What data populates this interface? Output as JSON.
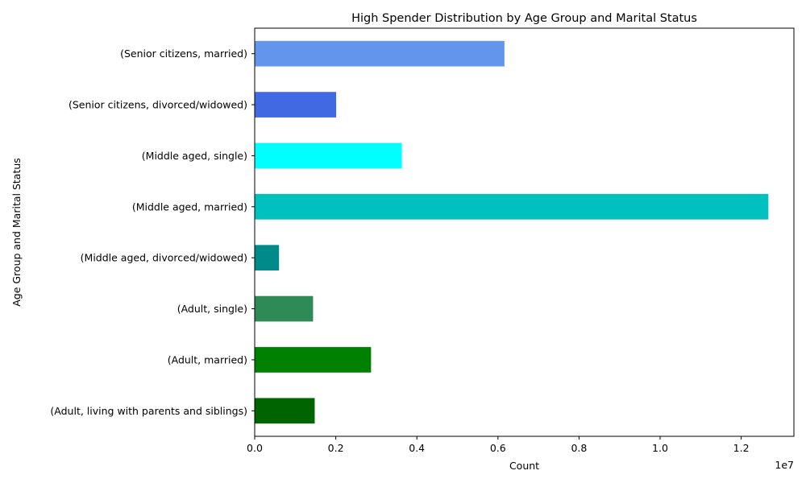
{
  "chart_data": {
    "type": "bar",
    "orientation": "horizontal",
    "title": "High Spender Distribution by Age Group and Marital Status",
    "xlabel": "Count",
    "ylabel": "Age Group and Marital Status",
    "offset_text": "1e7",
    "categories": [
      "(Adult, living with parents and siblings)",
      "(Adult, married)",
      "(Adult, single)",
      "(Middle aged, divorced/widowed)",
      "(Middle aged, married)",
      "(Middle aged, single)",
      "(Senior citizens, divorced/widowed)",
      "(Senior citizens, married)"
    ],
    "values": [
      1480000,
      2870000,
      1440000,
      600000,
      12670000,
      3630000,
      2010000,
      6160000
    ],
    "colors": [
      "#006400",
      "#008000",
      "#2e8b57",
      "#008b8b",
      "#00c0c0",
      "#00ffff",
      "#4169e1",
      "#6495ed"
    ],
    "xlim": [
      0,
      13300000
    ],
    "xticks": [
      0,
      2000000,
      4000000,
      6000000,
      8000000,
      10000000,
      12000000
    ],
    "xtick_labels": [
      "0.0",
      "0.2",
      "0.4",
      "0.6",
      "0.8",
      "1.0",
      "1.2"
    ],
    "grid": false,
    "legend": "none"
  }
}
